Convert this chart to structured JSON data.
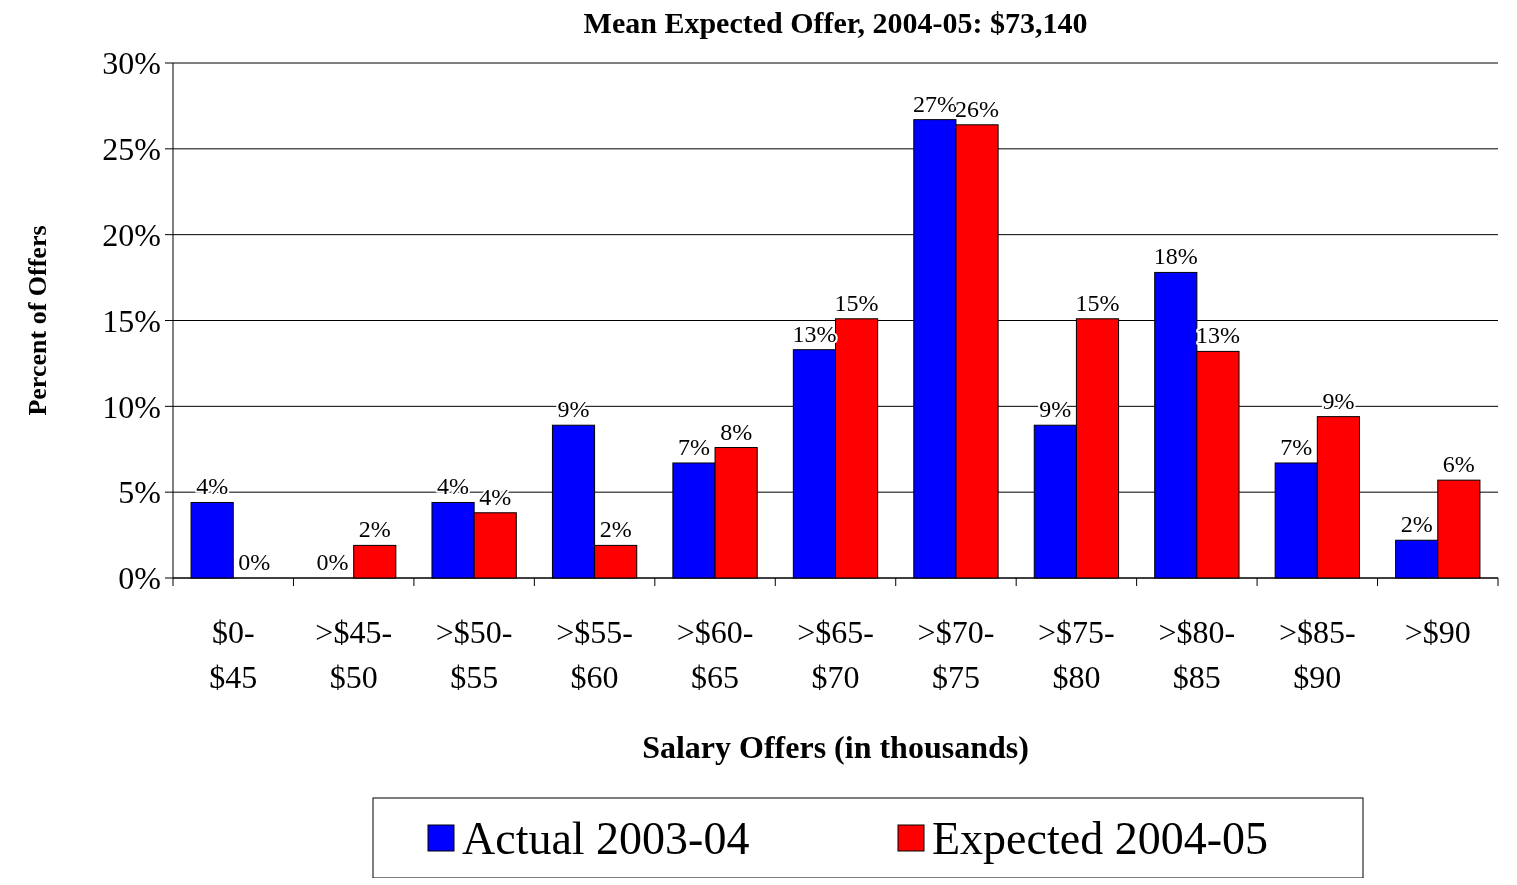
{
  "chart_data": {
    "type": "bar",
    "title": "Mean Expected Offer, 2004-05: $73,140",
    "xlabel": "Salary Offers (in thousands)",
    "ylabel": "Percent of Offers",
    "categories": [
      "$0-$45",
      ">$45-$50",
      ">$50-$55",
      ">$55-$60",
      ">$60-$65",
      ">$65-$70",
      ">$70-$75",
      ">$75-$80",
      ">$80-$85",
      ">$85-$90",
      ">$90"
    ],
    "series": [
      {
        "name": "Actual 2003-04",
        "color": "#0000ff",
        "values": [
          4.4,
          0,
          4.4,
          8.9,
          6.7,
          13.3,
          26.7,
          8.9,
          17.8,
          6.7,
          2.2
        ],
        "value_labels": [
          "4%",
          "0%",
          "4%",
          "9%",
          "7%",
          "13%",
          "27%",
          "9%",
          "18%",
          "7%",
          "2%"
        ]
      },
      {
        "name": "Expected 2004-05",
        "color": "#ff0000",
        "values": [
          0,
          1.9,
          3.8,
          1.9,
          7.6,
          15.1,
          26.4,
          15.1,
          13.2,
          9.4,
          5.7
        ],
        "value_labels": [
          "0%",
          "2%",
          "4%",
          "2%",
          "8%",
          "15%",
          "26%",
          "15%",
          "13%",
          "9%",
          "6%"
        ]
      }
    ],
    "ylim": [
      0,
      30
    ],
    "yticks": [
      {
        "value": 0,
        "label": "0%"
      },
      {
        "value": 5,
        "label": "5%"
      },
      {
        "value": 10,
        "label": "10%"
      },
      {
        "value": 15,
        "label": "15%"
      },
      {
        "value": 20,
        "label": "20%"
      },
      {
        "value": 25,
        "label": "25%"
      },
      {
        "value": 30,
        "label": "30%"
      }
    ],
    "grid": "y",
    "legend": "bottom"
  }
}
